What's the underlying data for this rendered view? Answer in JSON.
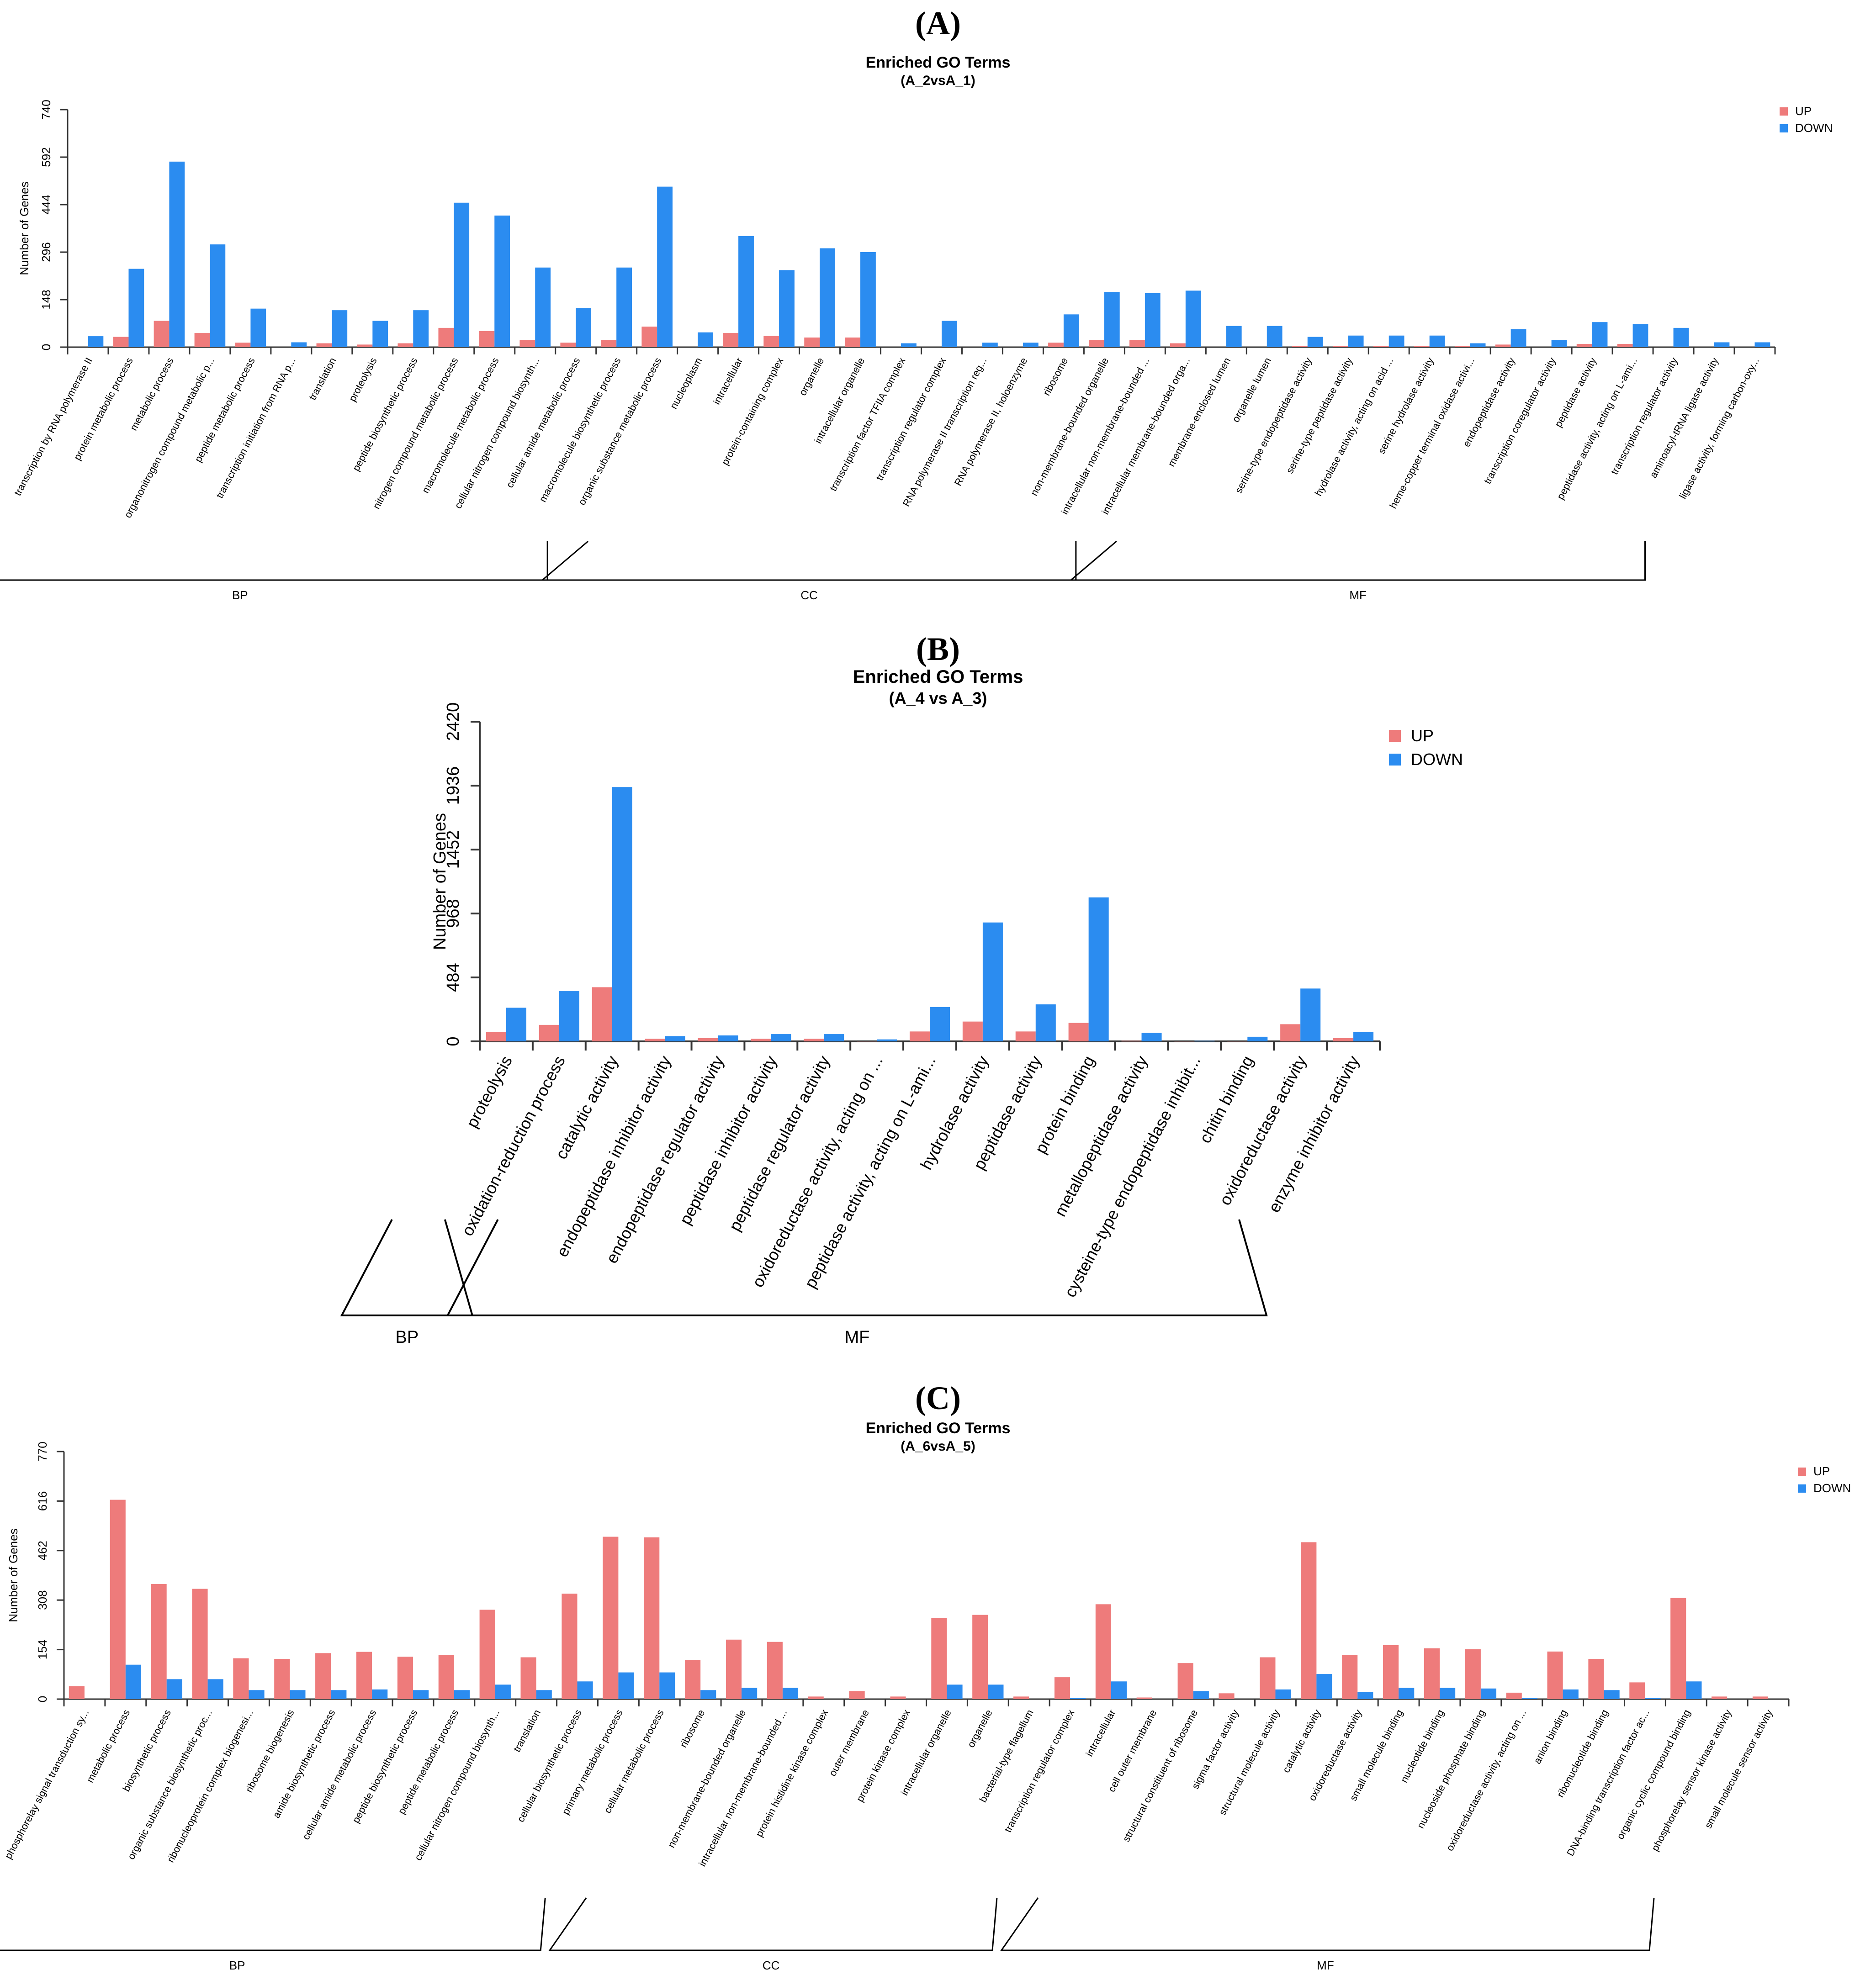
{
  "colors": {
    "up": "#EE7B7B",
    "down": "#2B8CF0",
    "axis": "#333333"
  },
  "chart_data": [
    {
      "type": "bar",
      "panel_label": "(A)",
      "title": "Enriched GO Terms",
      "subtitle": "(A_2vsA_1)",
      "ylabel": "Number of Genes",
      "ylim": [
        0,
        740
      ],
      "yticks": [
        "0",
        "148",
        "296",
        "444",
        "592",
        "740"
      ],
      "legend": {
        "up": "UP",
        "down": "DOWN",
        "placement": "top-right"
      },
      "categories": [
        "transcription by RNA polymerase II",
        "protein metabolic process",
        "metabolic process",
        "organonitrogen compound metabolic p...",
        "peptide metabolic process",
        "transcription initiation from RNA p...",
        "translation",
        "proteolysis",
        "peptide biosynthetic process",
        "nitrogen compound metabolic process",
        "macromolecule metabolic process",
        "cellular nitrogen compound biosynth...",
        "cellular amide metabolic process",
        "macromolecule biosynthetic process",
        "organic substance metabolic process",
        "nucleoplasm",
        "intracellular",
        "protein-containing complex",
        "organelle",
        "intracellular organelle",
        "transcription factor TFIIA complex",
        "transcription regulator complex",
        "RNA polymerase II transcription reg...",
        "RNA polymerase II, holoenzyme",
        "ribosome",
        "non-membrane-bounded organelle",
        "intracellular non-membrane-bounded ...",
        "intracellular membrane-bounded orga...",
        "membrane-enclosed lumen",
        "organelle lumen",
        "serine-type endopeptidase activity",
        "serine-type peptidase activity",
        "hydrolase activity, acting on acid ...",
        "serine hydrolase activity",
        "heme-copper terminal oxidase activi...",
        "endopeptidase activity",
        "transcription coregulator activity",
        "peptidase activity",
        "peptidase activity, acting on L-ami...",
        "transcription regulator activity",
        "aminoacyl-tRNA ligase activity",
        "ligase activity, forming carbon-oxy..."
      ],
      "series": [
        {
          "name": "UP",
          "values": [
            0,
            32,
            82,
            44,
            14,
            0,
            12,
            8,
            12,
            60,
            50,
            22,
            14,
            22,
            64,
            0,
            44,
            35,
            30,
            30,
            0,
            0,
            0,
            0,
            14,
            22,
            22,
            12,
            0,
            0,
            3,
            3,
            3,
            3,
            3,
            8,
            0,
            10,
            10,
            0,
            0,
            0
          ]
        },
        {
          "name": "DOWN",
          "values": [
            34,
            244,
            578,
            320,
            120,
            15,
            115,
            82,
            115,
            450,
            410,
            248,
            122,
            248,
            500,
            46,
            346,
            240,
            308,
            296,
            12,
            82,
            14,
            14,
            102,
            172,
            168,
            176,
            66,
            66,
            32,
            36,
            36,
            36,
            12,
            56,
            22,
            78,
            72,
            60,
            15,
            15
          ]
        }
      ],
      "groups": [
        {
          "name": "BP",
          "start": 0,
          "end": 14
        },
        {
          "name": "CC",
          "start": 15,
          "end": 27
        },
        {
          "name": "MF",
          "start": 28,
          "end": 41
        }
      ]
    },
    {
      "type": "bar",
      "panel_label": "(B)",
      "title": "Enriched GO Terms",
      "subtitle": "(A_4 vs A_3)",
      "ylabel": "Number of Genes",
      "ylim": [
        0,
        2420
      ],
      "yticks": [
        "0",
        "484",
        "968",
        "1452",
        "1936",
        "2420"
      ],
      "legend": {
        "up": "UP",
        "down": "DOWN",
        "placement": "top-right"
      },
      "categories": [
        "proteolysis",
        "oxidation-reduction process",
        "catalytic activity",
        "endopeptidase inhibitor activity",
        "endopeptidase regulator activity",
        "peptidase inhibitor activity",
        "peptidase regulator activity",
        "oxidoreductase activity, acting on ...",
        "peptidase activity, acting on L-ami...",
        "hydrolase activity",
        "peptidase activity",
        "protein binding",
        "metallopeptidase activity",
        "cysteine-type endopeptidase inhibit...",
        "chitin binding",
        "oxidoreductase activity",
        "enzyme inhibitor activity"
      ],
      "series": [
        {
          "name": "UP",
          "values": [
            70,
            125,
            410,
            20,
            25,
            20,
            20,
            3,
            75,
            150,
            75,
            140,
            5,
            3,
            3,
            130,
            25
          ]
        },
        {
          "name": "DOWN",
          "values": [
            255,
            380,
            1925,
            40,
            45,
            55,
            55,
            15,
            260,
            900,
            280,
            1090,
            65,
            5,
            35,
            400,
            70
          ]
        }
      ],
      "groups": [
        {
          "name": "BP",
          "start": 0,
          "end": 1
        },
        {
          "name": "MF",
          "start": 2,
          "end": 16
        }
      ]
    },
    {
      "type": "bar",
      "panel_label": "(C)",
      "title": "Enriched GO Terms",
      "subtitle": "(A_6vsA_5)",
      "ylabel": "Number of Genes",
      "ylim": [
        0,
        770
      ],
      "yticks": [
        "0",
        "154",
        "308",
        "462",
        "616",
        "770"
      ],
      "legend": {
        "up": "UP",
        "down": "DOWN",
        "placement": "top-right"
      },
      "categories": [
        "phosphorelay signal transduction sy...",
        "metabolic process",
        "biosynthetic process",
        "organic substance biosynthetic proc...",
        "ribonucleoprotein complex biogenesi...",
        "ribosome biogenesis",
        "amide biosynthetic process",
        "cellular amide metabolic process",
        "peptide biosynthetic process",
        "peptide metabolic process",
        "cellular nitrogen compound biosynth...",
        "translation",
        "cellular biosynthetic process",
        "primary metabolic process",
        "cellular metabolic process",
        "ribosome",
        "non-membrane-bounded organelle",
        "intracellular non-membrane-bounded ...",
        "protein histidine kinase complex",
        "outer membrane",
        "protein kinase complex",
        "intracellular organelle",
        "organelle",
        "bacterial-type flagellum",
        "transcription regulator complex",
        "intracellular",
        "cell outer membrane",
        "structural constituent of ribosome",
        "sigma factor activity",
        "structural molecule activity",
        "catalytic activity",
        "oxidoreductase activity",
        "small molecule binding",
        "nucleotide binding",
        "nucleoside phosphate binding",
        "oxidoreductase activity, acting on ...",
        "anion binding",
        "ribonucleotide binding",
        "DNA-binding transcription factor ac...",
        "organic cyclic compound binding",
        "phosphorelay sensor kinase activity",
        "small molecule sensor activity"
      ],
      "series": [
        {
          "name": "UP",
          "values": [
            40,
            620,
            358,
            343,
            127,
            125,
            143,
            147,
            132,
            137,
            278,
            130,
            328,
            505,
            503,
            122,
            185,
            178,
            8,
            25,
            8,
            252,
            262,
            8,
            68,
            295,
            5,
            112,
            18,
            130,
            488,
            137,
            168,
            158,
            155,
            20,
            148,
            125,
            52,
            315,
            8,
            8
          ]
        },
        {
          "name": "DOWN",
          "values": [
            0,
            107,
            62,
            62,
            28,
            28,
            28,
            30,
            28,
            28,
            45,
            28,
            55,
            83,
            83,
            28,
            35,
            35,
            0,
            0,
            0,
            45,
            45,
            0,
            3,
            55,
            0,
            25,
            0,
            30,
            78,
            22,
            35,
            35,
            33,
            3,
            30,
            28,
            3,
            55,
            0,
            0
          ]
        }
      ],
      "groups": [
        {
          "name": "BP",
          "start": 0,
          "end": 14
        },
        {
          "name": "CC",
          "start": 15,
          "end": 25
        },
        {
          "name": "MF",
          "start": 26,
          "end": 41
        }
      ]
    }
  ]
}
